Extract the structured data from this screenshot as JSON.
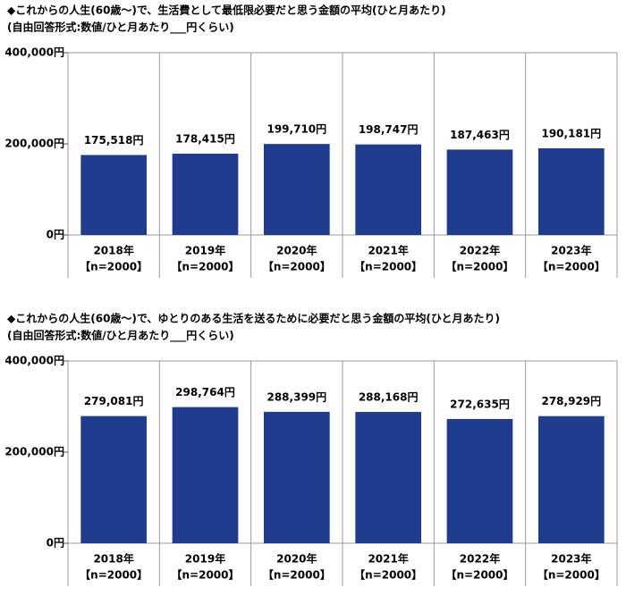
{
  "chart_data": [
    {
      "type": "bar",
      "title": "◆これからの人生(60歳～)で、生活費として最低限必要だと思う金額の平均(ひと月あたり)",
      "subtitle": "(自由回答形式:数値/ひと月あたり___円くらい)",
      "categories": [
        "2018年",
        "2019年",
        "2020年",
        "2021年",
        "2022年",
        "2023年"
      ],
      "sample_labels": [
        "【n=2000】",
        "【n=2000】",
        "【n=2000】",
        "【n=2000】",
        "【n=2000】",
        "【n=2000】"
      ],
      "values": [
        175518,
        178415,
        199710,
        198747,
        187463,
        190181
      ],
      "value_labels": [
        "175,518円",
        "178,415円",
        "199,710円",
        "198,747円",
        "187,463円",
        "190,181円"
      ],
      "color": "#1f3c8f",
      "ylim": [
        0,
        400000
      ],
      "yticks": [
        {
          "value": 0,
          "label": "0円"
        },
        {
          "value": 200000,
          "label": "200,000円"
        },
        {
          "value": 400000,
          "label": "400,000円"
        }
      ]
    },
    {
      "type": "bar",
      "title": "◆これからの人生(60歳～)で、ゆとりのある生活を送るために必要だと思う金額の平均(ひと月あたり)",
      "subtitle": "(自由回答形式:数値/ひと月あたり___円くらい)",
      "categories": [
        "2018年",
        "2019年",
        "2020年",
        "2021年",
        "2022年",
        "2023年"
      ],
      "sample_labels": [
        "【n=2000】",
        "【n=2000】",
        "【n=2000】",
        "【n=2000】",
        "【n=2000】",
        "【n=2000】"
      ],
      "values": [
        279081,
        298764,
        288399,
        288168,
        272635,
        278929
      ],
      "value_labels": [
        "279,081円",
        "298,764円",
        "288,399円",
        "288,168円",
        "272,635円",
        "278,929円"
      ],
      "color": "#1f3c8f",
      "ylim": [
        0,
        400000
      ],
      "yticks": [
        {
          "value": 0,
          "label": "0円"
        },
        {
          "value": 200000,
          "label": "200,000円"
        },
        {
          "value": 400000,
          "label": "400,000円"
        }
      ]
    }
  ]
}
